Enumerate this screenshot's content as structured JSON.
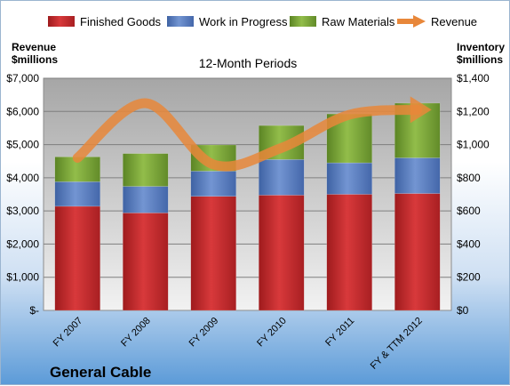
{
  "chart_data": {
    "type": "bar",
    "stacked": true,
    "title": "12-Month Periods",
    "company": "General Cable",
    "categories": [
      "FY 2007",
      "FY 2008",
      "FY 2009",
      "FY 2010",
      "FY 2011",
      "FY & TTM 2012"
    ],
    "series": [
      {
        "name": "Finished Goods",
        "axis": "right",
        "color": "#c0282a",
        "values": [
          628,
          588,
          688,
          695,
          700,
          705
        ]
      },
      {
        "name": "Work in Progress",
        "axis": "right",
        "color": "#5b7fbf",
        "values": [
          148,
          160,
          152,
          215,
          190,
          215
        ]
      },
      {
        "name": "Raw Materials",
        "axis": "right",
        "color": "#76a031",
        "values": [
          150,
          198,
          158,
          205,
          295,
          330
        ]
      }
    ],
    "line_series": {
      "name": "Revenue",
      "axis": "left",
      "color": "#e8873a",
      "values": [
        4600,
        6250,
        4400,
        4900,
        5900,
        6050
      ]
    },
    "left_axis": {
      "title_line1": "Revenue",
      "title_line2": "$millions",
      "ylim": [
        0,
        7000
      ],
      "ticks": [
        "$-",
        "$1,000",
        "$2,000",
        "$3,000",
        "$4,000",
        "$5,000",
        "$6,000",
        "$7,000"
      ]
    },
    "right_axis": {
      "title_line1": "Inventory",
      "title_line2": "$millions",
      "ylim": [
        0,
        1400
      ],
      "ticks": [
        "$0",
        "$200",
        "$400",
        "$600",
        "$800",
        "$1,000",
        "$1,200",
        "$1,400"
      ]
    },
    "legend_position": "top",
    "grid": true
  }
}
